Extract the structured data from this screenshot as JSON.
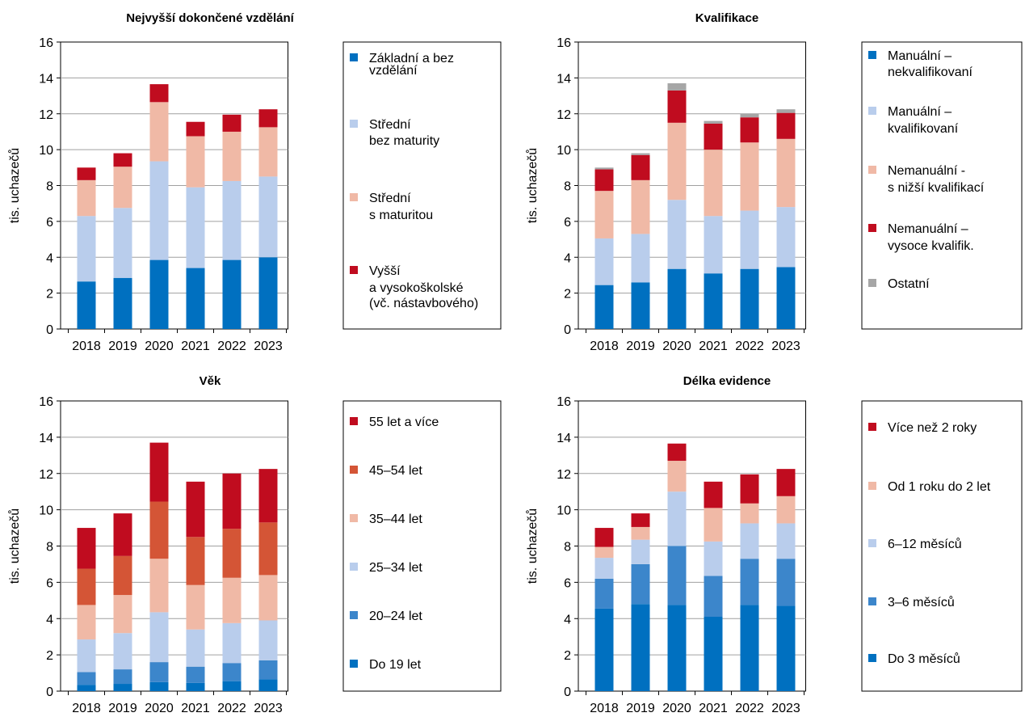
{
  "colors": {
    "dark_blue": "#0070C0",
    "mid_blue": "#3C86CB",
    "light_blue": "#B9CDEC",
    "light_salmon": "#F0B9A6",
    "dark_orange": "#D45536",
    "dark_red": "#C00C1F",
    "gray": "#A6A6A6"
  },
  "chart_data": [
    {
      "type": "bar",
      "stacked": true,
      "title": "Nejvyšší dokončené vzdělání",
      "ylabel": "tis. uchazečů",
      "ylim": [
        0,
        16
      ],
      "yticks": [
        "0",
        "2",
        "4",
        "6",
        "8",
        "10",
        "12",
        "14",
        "16"
      ],
      "categories": [
        "2018",
        "2019",
        "2020",
        "2021",
        "2022",
        "2023"
      ],
      "series": [
        {
          "name": "Základní a bez\nvzdělání",
          "color": "#0070C0",
          "values": [
            2.65,
            2.85,
            3.85,
            3.4,
            3.85,
            4.0
          ]
        },
        {
          "name": "Střední\nbez maturity",
          "color": "#B9CDEC",
          "values": [
            3.65,
            3.9,
            5.5,
            4.5,
            4.4,
            4.5
          ]
        },
        {
          "name": "Střední\ns maturitou",
          "color": "#F0B9A6",
          "values": [
            2.0,
            2.3,
            3.3,
            2.85,
            2.75,
            2.75
          ]
        },
        {
          "name": "Vyšší\na vysokoškolské\n(vč. nástavbového)",
          "color": "#C00C1F",
          "values": [
            0.7,
            0.75,
            1.0,
            0.8,
            0.95,
            1.0
          ]
        }
      ]
    },
    {
      "type": "bar",
      "stacked": true,
      "title": "Kvalifikace",
      "ylabel": "tis. uchazečů",
      "ylim": [
        0,
        16
      ],
      "yticks": [
        "0",
        "2",
        "4",
        "6",
        "8",
        "10",
        "12",
        "14",
        "16"
      ],
      "categories": [
        "2018",
        "2019",
        "2020",
        "2021",
        "2022",
        "2023"
      ],
      "series": [
        {
          "name": "Manuální –\nnekvalifikovaní",
          "color": "#0070C0",
          "values": [
            2.45,
            2.6,
            3.35,
            3.1,
            3.35,
            3.45
          ]
        },
        {
          "name": "Manuální –\nkvalifikovaní",
          "color": "#B9CDEC",
          "values": [
            2.6,
            2.7,
            3.85,
            3.2,
            3.25,
            3.35
          ]
        },
        {
          "name": "Nemanuální -\ns nižší kvalifikací",
          "color": "#F0B9A6",
          "values": [
            2.65,
            3.0,
            4.3,
            3.7,
            3.8,
            3.8
          ]
        },
        {
          "name": "Nemanuální –\nvysoce kvalifik.",
          "color": "#C00C1F",
          "values": [
            1.2,
            1.4,
            1.8,
            1.45,
            1.4,
            1.45
          ]
        },
        {
          "name": "Ostatní",
          "color": "#A6A6A6",
          "values": [
            0.1,
            0.1,
            0.4,
            0.15,
            0.2,
            0.2
          ]
        }
      ]
    },
    {
      "type": "bar",
      "stacked": true,
      "title": "Věk",
      "ylabel": "tis. uchazečů",
      "ylim": [
        0,
        16
      ],
      "yticks": [
        "0",
        "2",
        "4",
        "6",
        "8",
        "10",
        "12",
        "14",
        "16"
      ],
      "categories": [
        "2018",
        "2019",
        "2020",
        "2021",
        "2022",
        "2023"
      ],
      "series": [
        {
          "name": "Do 19 let",
          "color": "#0070C0",
          "values": [
            0.35,
            0.4,
            0.5,
            0.45,
            0.55,
            0.65
          ]
        },
        {
          "name": "20–24 let",
          "color": "#3C86CB",
          "values": [
            0.7,
            0.8,
            1.1,
            0.9,
            1.0,
            1.05
          ]
        },
        {
          "name": "25–34 let",
          "color": "#B9CDEC",
          "values": [
            1.8,
            2.0,
            2.75,
            2.05,
            2.2,
            2.2
          ]
        },
        {
          "name": "35–44 let",
          "color": "#F0B9A6",
          "values": [
            1.9,
            2.1,
            2.95,
            2.45,
            2.5,
            2.5
          ]
        },
        {
          "name": "45–54 let",
          "color": "#D45536",
          "values": [
            2.0,
            2.15,
            3.15,
            2.65,
            2.7,
            2.9
          ]
        },
        {
          "name": "55 let a více",
          "color": "#C00C1F",
          "values": [
            2.25,
            2.35,
            3.25,
            3.05,
            3.05,
            2.95
          ]
        }
      ]
    },
    {
      "type": "bar",
      "stacked": true,
      "title": "Délka evidence",
      "ylabel": "tis. uchazečů",
      "ylim": [
        0,
        16
      ],
      "yticks": [
        "0",
        "2",
        "4",
        "6",
        "8",
        "10",
        "12",
        "14",
        "16"
      ],
      "categories": [
        "2018",
        "2019",
        "2020",
        "2021",
        "2022",
        "2023"
      ],
      "series": [
        {
          "name": "Do 3 měsíců",
          "color": "#0070C0",
          "values": [
            4.55,
            4.8,
            4.75,
            4.1,
            4.75,
            4.7
          ]
        },
        {
          "name": "3–6 měsíců",
          "color": "#3C86CB",
          "values": [
            1.65,
            2.2,
            3.25,
            2.25,
            2.55,
            2.6
          ]
        },
        {
          "name": "6–12 měsíců",
          "color": "#B9CDEC",
          "values": [
            1.15,
            1.35,
            3.0,
            1.9,
            1.95,
            1.95
          ]
        },
        {
          "name": "Od 1 roku do 2 let",
          "color": "#F0B9A6",
          "values": [
            0.6,
            0.7,
            1.7,
            1.85,
            1.1,
            1.5
          ]
        },
        {
          "name": "Více než 2 roky",
          "color": "#C00C1F",
          "values": [
            1.05,
            0.75,
            0.95,
            1.45,
            1.6,
            1.5
          ]
        }
      ]
    }
  ]
}
